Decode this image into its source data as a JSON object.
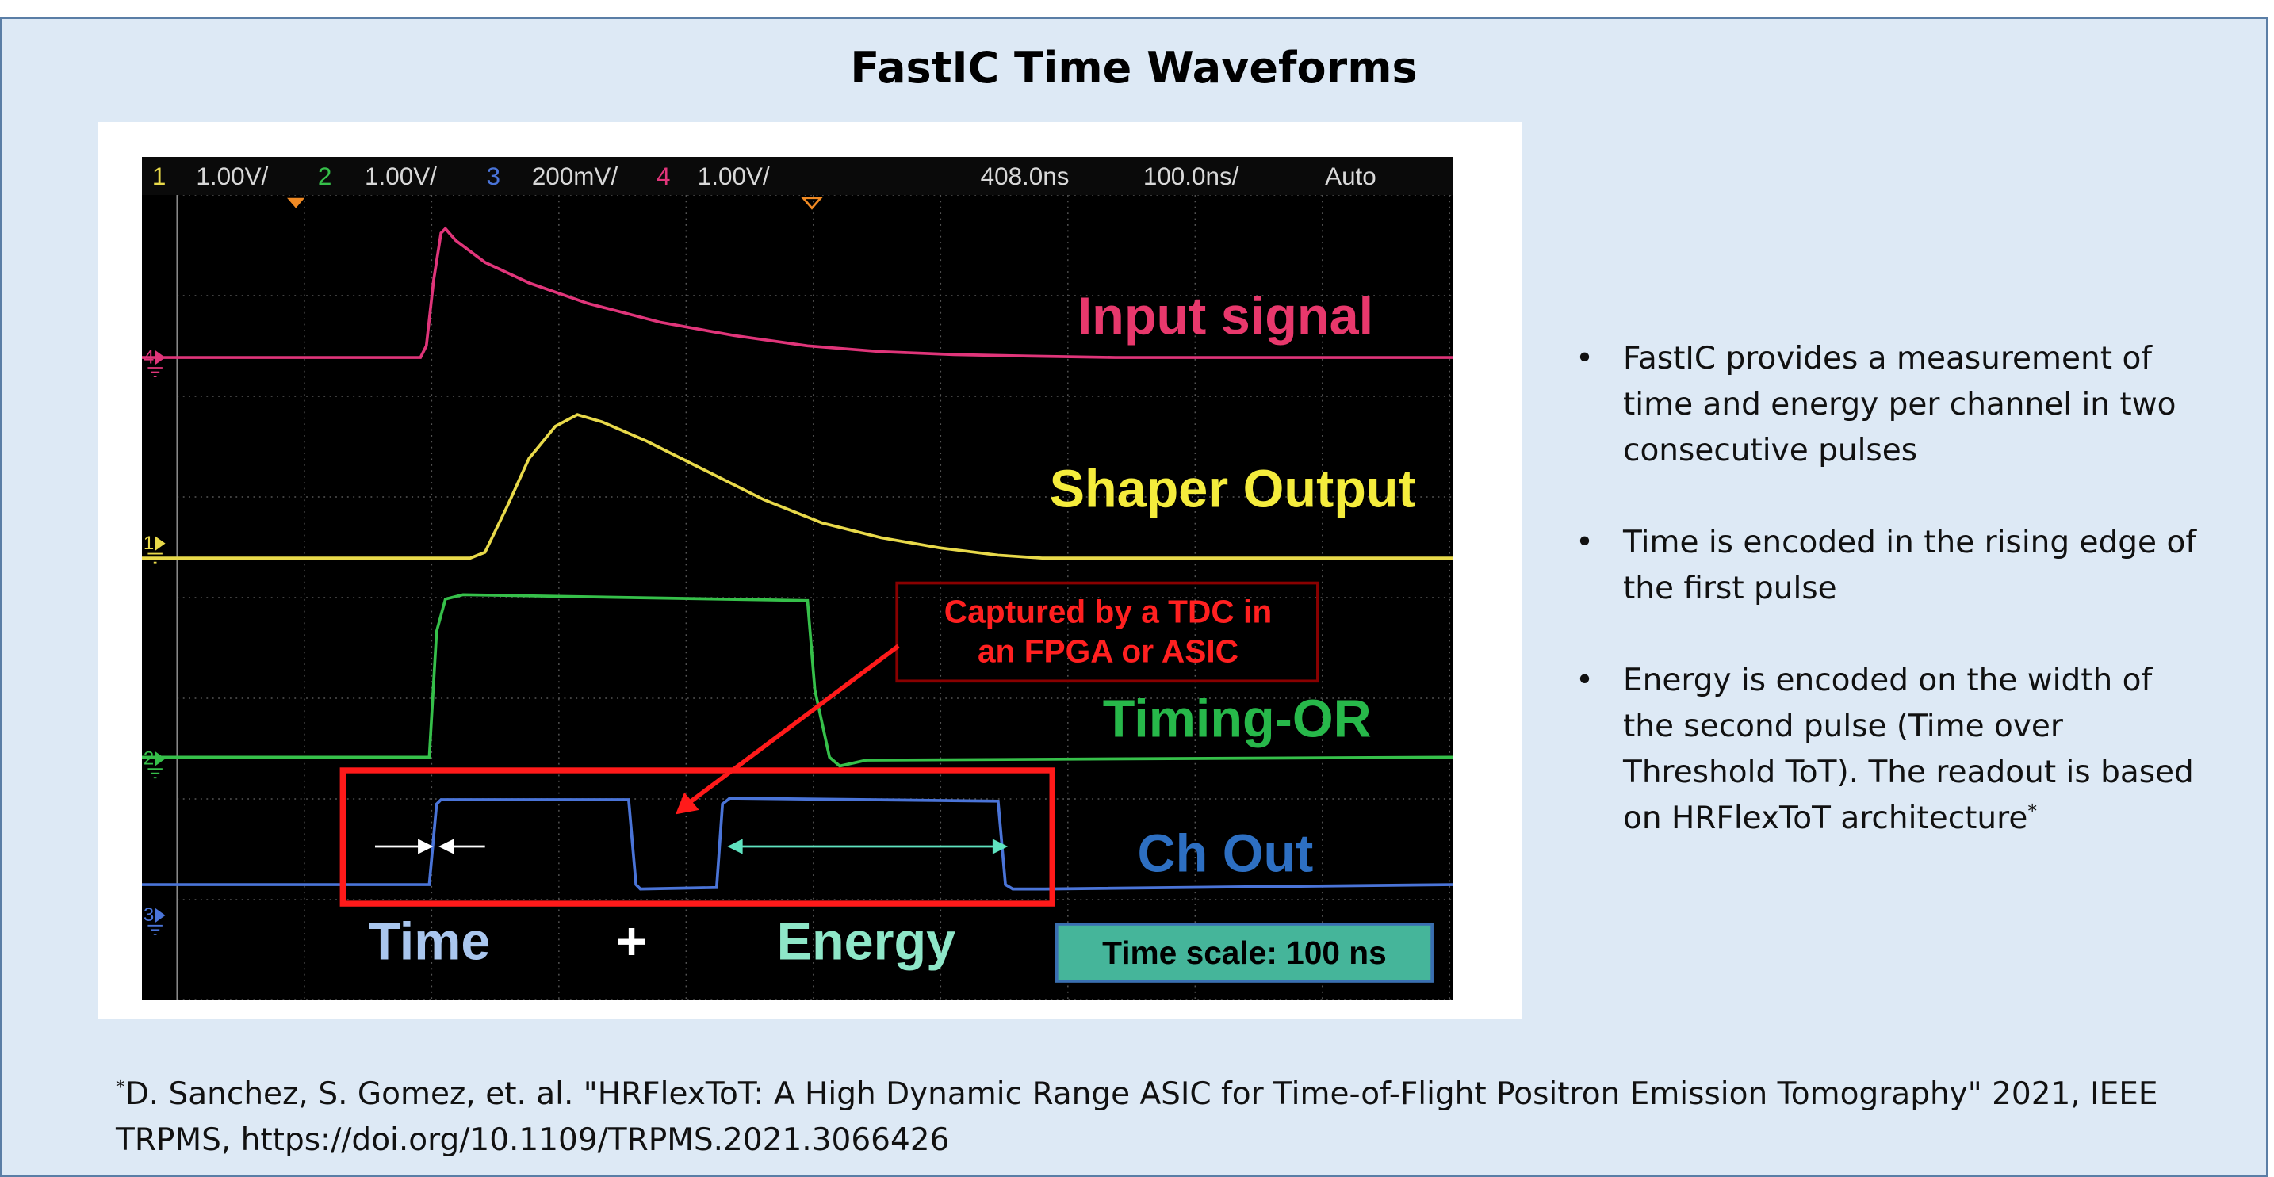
{
  "header": {
    "title": "FastIC Time Waveforms"
  },
  "scope": {
    "status_bar": [
      {
        "text": "1",
        "color": "#e8d94a"
      },
      {
        "text": "1.00V/",
        "color": "#d8d8d8"
      },
      {
        "text": "2",
        "color": "#36c04a"
      },
      {
        "text": "1.00V/",
        "color": "#d8d8d8"
      },
      {
        "text": "3",
        "color": "#4a74d8"
      },
      {
        "text": "200mV/",
        "color": "#d8d8d8"
      },
      {
        "text": "4",
        "color": "#e0357a"
      },
      {
        "text": "1.00V/",
        "color": "#d8d8d8"
      },
      {
        "text": "408.0ns",
        "color": "#d8d8d8"
      },
      {
        "text": "100.0ns/",
        "color": "#d8d8d8"
      },
      {
        "text": "Auto",
        "color": "#d8d8d8"
      }
    ],
    "channel_markers": [
      "4",
      "1",
      "2",
      "3"
    ],
    "trace_labels": [
      "Input signal",
      "Shaper Output",
      "Timing-OR",
      "Ch Out"
    ],
    "annotation": [
      "Captured by a TDC in",
      "an FPGA or ASIC"
    ],
    "bottom_labels": [
      "Time",
      "+",
      "Energy"
    ],
    "time_scale": "Time scale: 100 ns"
  },
  "bullets": [
    {
      "text": "FastIC provides a measurement of time and energy per channel in two consecutive pulses"
    },
    {
      "text": "Time is encoded in the rising edge of the first pulse"
    },
    {
      "text": "Energy is encoded on the width of the second pulse (Time over Threshold ToT). The readout is based on HRFlexToT architecture",
      "sup": "*"
    }
  ],
  "reference": {
    "sup": "*",
    "text": "D. Sanchez, S. Gomez, et. al. \"HRFlexToT: A High Dynamic Range ASIC for Time-of-Flight Positron Emission Tomography\" 2021, IEEE TRPMS, https://doi.org/10.1109/TRPMS.2021.3066426"
  }
}
